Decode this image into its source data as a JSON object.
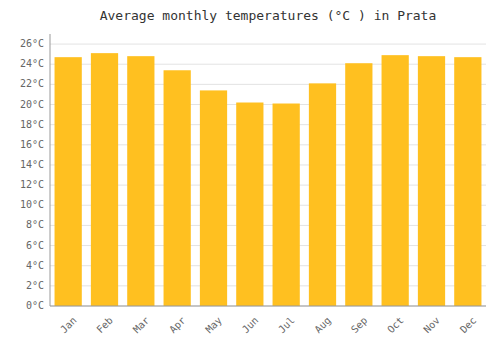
{
  "chart_data": {
    "type": "bar",
    "title": "Average monthly temperatures (°C ) in Prata",
    "categories": [
      "Jan",
      "Feb",
      "Mar",
      "Apr",
      "May",
      "Jun",
      "Jul",
      "Aug",
      "Sep",
      "Oct",
      "Nov",
      "Dec"
    ],
    "values": [
      24.7,
      25.1,
      24.8,
      23.4,
      21.4,
      20.2,
      20.1,
      22.1,
      24.1,
      24.9,
      24.8,
      24.7
    ],
    "color": "#FFC020",
    "ylim": [
      0,
      27
    ],
    "yticks": [
      {
        "value": 0,
        "label": "0°C"
      },
      {
        "value": 2,
        "label": "2°C"
      },
      {
        "value": 4,
        "label": "4°C"
      },
      {
        "value": 6,
        "label": "6°C"
      },
      {
        "value": 8,
        "label": "8°C"
      },
      {
        "value": 10,
        "label": "10°C"
      },
      {
        "value": 12,
        "label": "12°C"
      },
      {
        "value": 14,
        "label": "14°C"
      },
      {
        "value": 16,
        "label": "16°C"
      },
      {
        "value": 18,
        "label": "18°C"
      },
      {
        "value": 20,
        "label": "20°C"
      },
      {
        "value": 22,
        "label": "22°C"
      },
      {
        "value": 24,
        "label": "24°C"
      },
      {
        "value": 26,
        "label": "26°C"
      }
    ],
    "grid": true
  }
}
